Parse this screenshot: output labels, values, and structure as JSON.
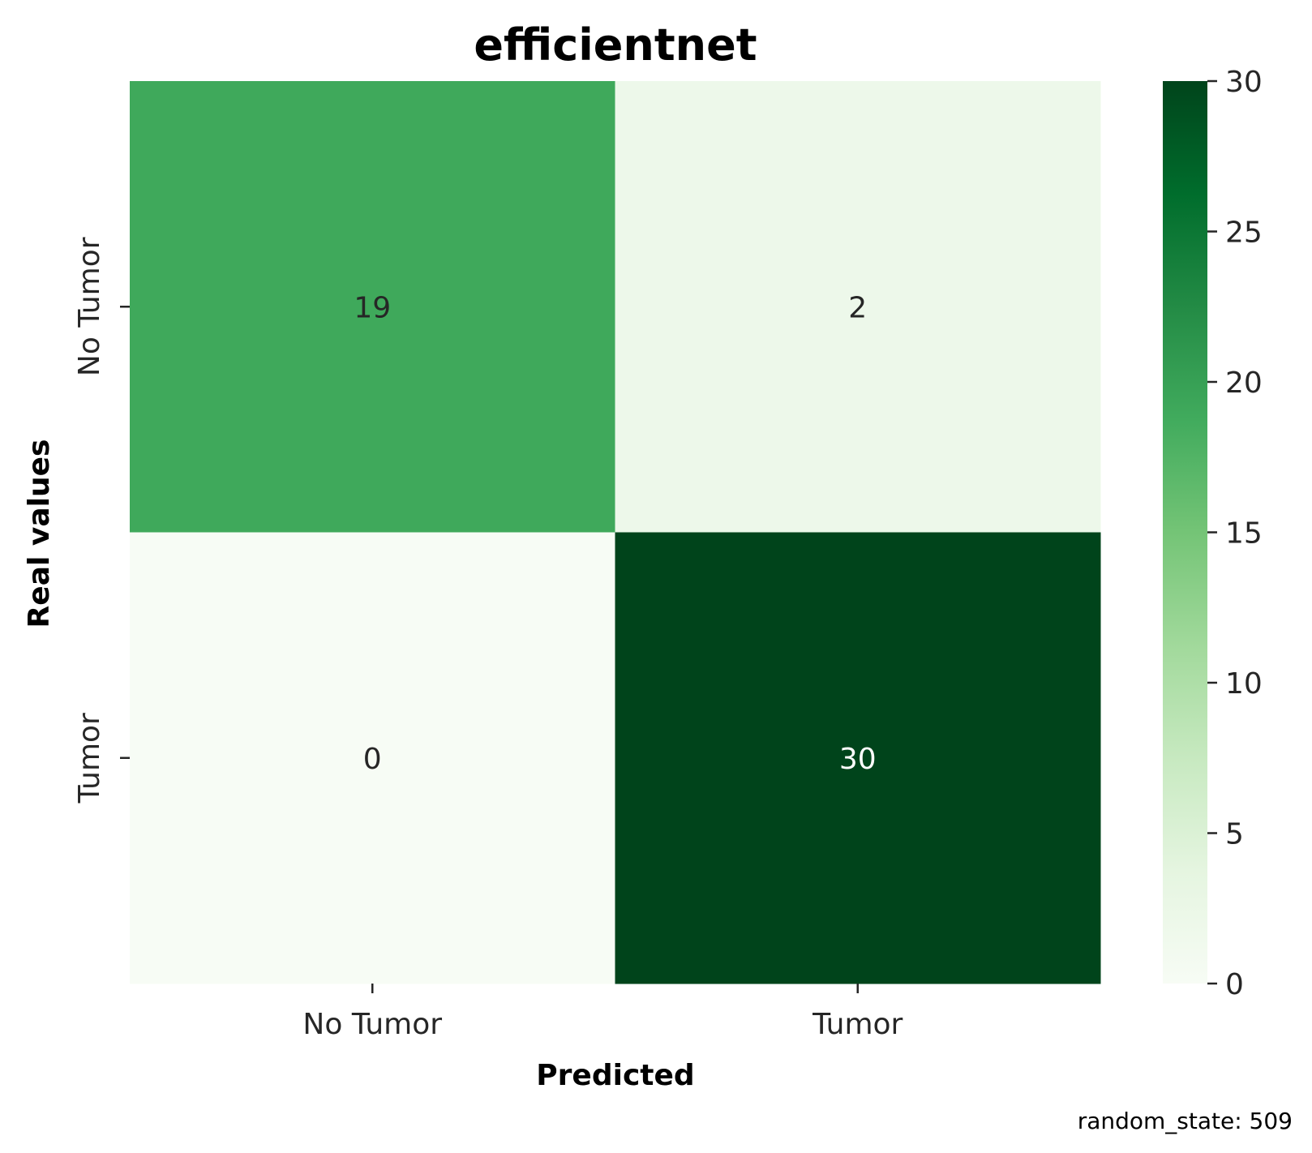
{
  "chart_data": {
    "type": "heatmap",
    "title": "efficientnet",
    "xlabel": "Predicted",
    "ylabel": "Real values",
    "x_categories": [
      "No Tumor",
      "Tumor"
    ],
    "y_categories": [
      "No Tumor",
      "Tumor"
    ],
    "values": [
      [
        19,
        2
      ],
      [
        0,
        30
      ]
    ],
    "colormap": "Greens",
    "colorbar": {
      "range": [
        0,
        30
      ],
      "ticks": [
        0,
        5,
        10,
        15,
        20,
        25,
        30
      ]
    },
    "grid": false
  },
  "footnote": "random_state: 509"
}
